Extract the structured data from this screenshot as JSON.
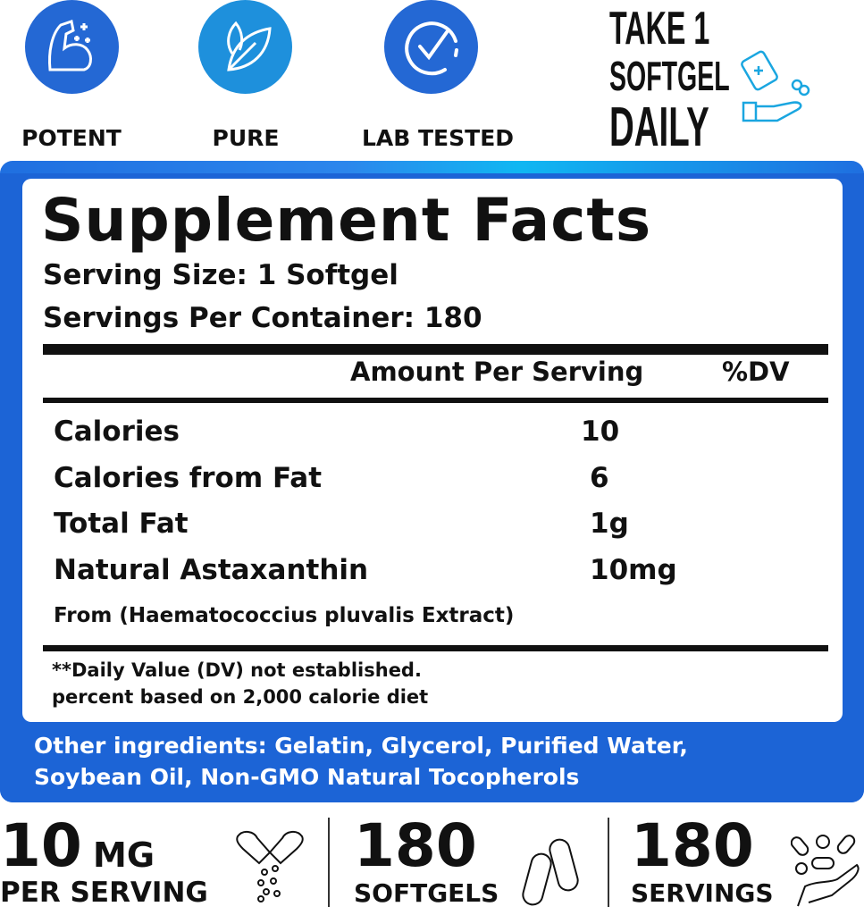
{
  "badges": [
    {
      "label": "POTENT",
      "icon": "flexed-arm-icon",
      "color": "#2468d4"
    },
    {
      "label": "PURE",
      "icon": "leaf-icon",
      "color": "#1e90dc"
    },
    {
      "label": "LAB TESTED",
      "icon": "check-circle-icon",
      "color": "#2468d4"
    }
  ],
  "dosage": {
    "line1": "TAKE 1",
    "line2": "SOFTGEL",
    "line3": "DAILY",
    "icon": "bottle-pill-hand-icon"
  },
  "facts": {
    "title": "Supplement Facts",
    "serving_size": "Serving Size: 1 Softgel",
    "servings_per_container": "Servings Per Container: 180",
    "header_amount": "Amount Per Serving",
    "header_dv": "%DV",
    "rows": [
      {
        "name": "Calories",
        "amount": "10"
      },
      {
        "name": "Calories from Fat",
        "amount": "6"
      },
      {
        "name": "Total Fat",
        "amount": "1g"
      },
      {
        "name": "Natural Astaxanthin",
        "amount": "10mg"
      }
    ],
    "source": "From (Haematococcius pluvalis Extract)",
    "footnote1": "**Daily Value (DV) not established.",
    "footnote2": "percent based on 2,000 calorie diet"
  },
  "other_ingredients": {
    "line1": "Other ingredients: Gelatin, Glycerol, Purified Water,",
    "line2": "Soybean Oil, Non-GMO Natural Tocopherols"
  },
  "stats": [
    {
      "number": "10",
      "unit": "MG",
      "label": "PER SERVING",
      "icon": "open-capsule-icon"
    },
    {
      "number": "180",
      "label": "SOFTGELS",
      "icon": "softgels-icon"
    },
    {
      "number": "180",
      "label": "SERVINGS",
      "icon": "pills-hand-icon"
    }
  ],
  "colors": {
    "brand_blue": "#1c64d6",
    "accent_cyan": "#10b7f2"
  }
}
